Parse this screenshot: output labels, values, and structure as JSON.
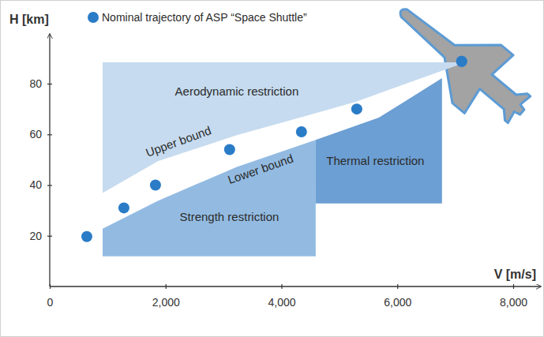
{
  "chart_data": {
    "type": "scatter",
    "x_label": "V [m/s]",
    "y_label": "H [km]",
    "xlim": [
      0,
      8450
    ],
    "ylim": [
      0,
      99
    ],
    "xticks": [
      0,
      {
        "value": 2000,
        "label": "2,000"
      },
      {
        "value": 4000,
        "label": "4,000"
      },
      {
        "value": 6000,
        "label": "6,000"
      },
      {
        "value": 8000,
        "label": "8,000"
      }
    ],
    "yticks": [
      20,
      40,
      60,
      80
    ],
    "x": [
      640,
      1280,
      1825,
      3105,
      4345,
      5300,
      7110
    ],
    "series": [
      {
        "name": "Nominal trajectory of ASP “Space Shuttle”",
        "color": "#2a7cc7",
        "marker": "circle",
        "values": [
          19.7,
          31,
          40,
          54,
          61,
          70,
          88.8
        ]
      }
    ],
    "legend": "top-left",
    "regions": [
      {
        "name": "Aerodynamic restriction",
        "color": "#c6dbef",
        "points": [
          [
            913,
            88.4
          ],
          [
            7180,
            88.4
          ],
          [
            6226,
            80.6
          ],
          [
            5272,
            72.8
          ],
          [
            4319,
            66.6
          ],
          [
            3229,
            59.7
          ],
          [
            1866,
            49.4
          ],
          [
            913,
            36.9
          ]
        ],
        "label_at": [
          3229,
          76.9
        ]
      },
      {
        "name": "Strength restriction",
        "color": "#93bbe2",
        "points": [
          [
            913,
            11.9
          ],
          [
            4591,
            11.9
          ],
          [
            4591,
            57.8
          ],
          [
            3229,
            47.2
          ],
          [
            1866,
            33.8
          ],
          [
            913,
            22.8
          ]
        ],
        "label_at": [
          3100,
          27.5
        ]
      },
      {
        "name": "Thermal restriction",
        "color": "#6c9fd3",
        "points": [
          [
            4591,
            32.8
          ],
          [
            6771,
            32.8
          ],
          [
            6771,
            82.2
          ],
          [
            5681,
            66.6
          ],
          [
            4591,
            57.8
          ]
        ],
        "label_at": [
          5620,
          49.4
        ]
      }
    ],
    "annotations": [
      {
        "text": "Upper bound",
        "x": 2221,
        "y": 57.2
      },
      {
        "text": "Lower bound",
        "x": 3638,
        "y": 46.3
      }
    ]
  }
}
